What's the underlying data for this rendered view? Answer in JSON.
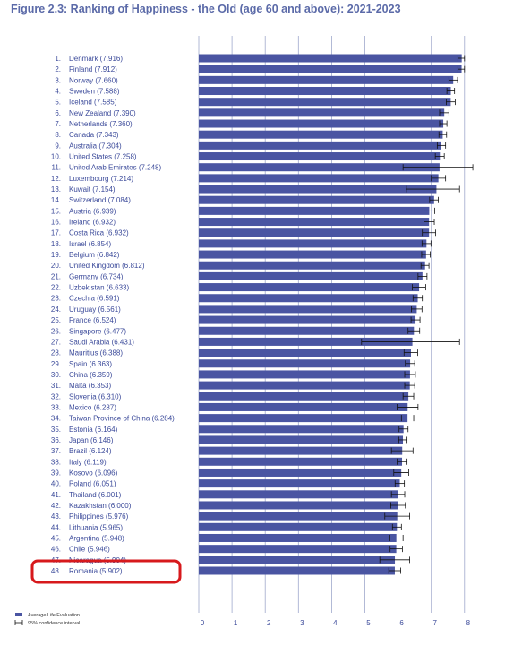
{
  "figure": {
    "title": "Figure 2.3: Ranking of Happiness - the Old (age 60 and above): 2021-2023"
  },
  "colors": {
    "bar": "#4a55a2",
    "title": "#5b6aa8",
    "label": "#3b4a9a",
    "grid": "#9fa8cc",
    "highlight": "#d7191c"
  },
  "highlight_rank": 48,
  "chart_data": {
    "type": "bar",
    "orientation": "horizontal",
    "title": "Figure 2.3: Ranking of Happiness - the Old (age 60 and above): 2021-2023",
    "xlim": [
      0,
      8
    ],
    "x_ticks": [
      "0",
      "1",
      "2",
      "3",
      "4",
      "5",
      "6",
      "7",
      "8"
    ],
    "grid": true,
    "legend_position": "bottom-left",
    "legend": [
      {
        "label": "Average Life Evaluation",
        "marker": "bar"
      },
      {
        "label": "95% confidence interval",
        "marker": "errorbar"
      }
    ],
    "rows": [
      {
        "rank": "1.",
        "label": "Denmark (7.916)",
        "value": 7.916,
        "ci": [
          7.8,
          8.0
        ]
      },
      {
        "rank": "2.",
        "label": "Finland (7.912)",
        "value": 7.912,
        "ci": [
          7.8,
          8.0
        ]
      },
      {
        "rank": "3.",
        "label": "Norway (7.660)",
        "value": 7.66,
        "ci": [
          7.53,
          7.79
        ]
      },
      {
        "rank": "4.",
        "label": "Sweden (7.588)",
        "value": 7.588,
        "ci": [
          7.47,
          7.7
        ]
      },
      {
        "rank": "5.",
        "label": "Iceland (7.585)",
        "value": 7.585,
        "ci": [
          7.45,
          7.72
        ]
      },
      {
        "rank": "6.",
        "label": "New Zealand (7.390)",
        "value": 7.39,
        "ci": [
          7.25,
          7.53
        ]
      },
      {
        "rank": "7.",
        "label": "Netherlands (7.360)",
        "value": 7.36,
        "ci": [
          7.25,
          7.47
        ]
      },
      {
        "rank": "8.",
        "label": "Canada (7.343)",
        "value": 7.343,
        "ci": [
          7.23,
          7.46
        ]
      },
      {
        "rank": "9.",
        "label": "Australia (7.304)",
        "value": 7.304,
        "ci": [
          7.18,
          7.43
        ]
      },
      {
        "rank": "10.",
        "label": "United States (7.258)",
        "value": 7.258,
        "ci": [
          7.12,
          7.39
        ]
      },
      {
        "rank": "11.",
        "label": "United Arab Emirates (7.248)",
        "value": 7.248,
        "ci": [
          6.15,
          8.25
        ]
      },
      {
        "rank": "12.",
        "label": "Luxembourg (7.214)",
        "value": 7.214,
        "ci": [
          7.0,
          7.43
        ]
      },
      {
        "rank": "13.",
        "label": "Kuwait (7.154)",
        "value": 7.154,
        "ci": [
          6.25,
          7.85
        ]
      },
      {
        "rank": "14.",
        "label": "Switzerland (7.084)",
        "value": 7.084,
        "ci": [
          6.95,
          7.21
        ]
      },
      {
        "rank": "15.",
        "label": "Austria (6.939)",
        "value": 6.939,
        "ci": [
          6.78,
          7.1
        ]
      },
      {
        "rank": "16.",
        "label": "Ireland (6.932)",
        "value": 6.932,
        "ci": [
          6.78,
          7.09
        ]
      },
      {
        "rank": "17.",
        "label": "Costa Rica (6.932)",
        "value": 6.932,
        "ci": [
          6.73,
          7.13
        ]
      },
      {
        "rank": "18.",
        "label": "Israel (6.854)",
        "value": 6.854,
        "ci": [
          6.72,
          6.99
        ]
      },
      {
        "rank": "19.",
        "label": "Belgium (6.842)",
        "value": 6.842,
        "ci": [
          6.71,
          6.97
        ]
      },
      {
        "rank": "20.",
        "label": "United Kingdom (6.812)",
        "value": 6.812,
        "ci": [
          6.69,
          6.93
        ]
      },
      {
        "rank": "21.",
        "label": "Germany (6.734)",
        "value": 6.734,
        "ci": [
          6.6,
          6.87
        ]
      },
      {
        "rank": "22.",
        "label": "Uzbekistan (6.633)",
        "value": 6.633,
        "ci": [
          6.43,
          6.83
        ]
      },
      {
        "rank": "23.",
        "label": "Czechia (6.591)",
        "value": 6.591,
        "ci": [
          6.45,
          6.73
        ]
      },
      {
        "rank": "24.",
        "label": "Uruguay (6.561)",
        "value": 6.561,
        "ci": [
          6.4,
          6.72
        ]
      },
      {
        "rank": "25.",
        "label": "France (6.524)",
        "value": 6.524,
        "ci": [
          6.39,
          6.66
        ]
      },
      {
        "rank": "26.",
        "label": "Singapore (6.477)",
        "value": 6.477,
        "ci": [
          6.3,
          6.65
        ]
      },
      {
        "rank": "27.",
        "label": "Saudi Arabia (6.431)",
        "value": 6.431,
        "ci": [
          4.9,
          7.85
        ]
      },
      {
        "rank": "28.",
        "label": "Mauritius (6.388)",
        "value": 6.388,
        "ci": [
          6.18,
          6.59
        ]
      },
      {
        "rank": "29.",
        "label": "Spain (6.363)",
        "value": 6.363,
        "ci": [
          6.22,
          6.5
        ]
      },
      {
        "rank": "30.",
        "label": "China (6.359)",
        "value": 6.359,
        "ci": [
          6.2,
          6.52
        ]
      },
      {
        "rank": "31.",
        "label": "Malta (6.353)",
        "value": 6.353,
        "ci": [
          6.2,
          6.5
        ]
      },
      {
        "rank": "32.",
        "label": "Slovenia (6.310)",
        "value": 6.31,
        "ci": [
          6.15,
          6.47
        ]
      },
      {
        "rank": "33.",
        "label": "Mexico (6.287)",
        "value": 6.287,
        "ci": [
          5.97,
          6.6
        ]
      },
      {
        "rank": "34.",
        "label": "Taiwan Province of China (6.284)",
        "value": 6.284,
        "ci": [
          6.1,
          6.47
        ]
      },
      {
        "rank": "35.",
        "label": "Estonia (6.164)",
        "value": 6.164,
        "ci": [
          6.03,
          6.3
        ]
      },
      {
        "rank": "36.",
        "label": "Japan (6.146)",
        "value": 6.146,
        "ci": [
          6.02,
          6.27
        ]
      },
      {
        "rank": "37.",
        "label": "Brazil (6.124)",
        "value": 6.124,
        "ci": [
          5.8,
          6.45
        ]
      },
      {
        "rank": "38.",
        "label": "Italy (6.119)",
        "value": 6.119,
        "ci": [
          5.97,
          6.27
        ]
      },
      {
        "rank": "39.",
        "label": "Kosovo (6.096)",
        "value": 6.096,
        "ci": [
          5.87,
          6.32
        ]
      },
      {
        "rank": "40.",
        "label": "Poland (6.051)",
        "value": 6.051,
        "ci": [
          5.91,
          6.19
        ]
      },
      {
        "rank": "41.",
        "label": "Thailand (6.001)",
        "value": 6.001,
        "ci": [
          5.8,
          6.2
        ]
      },
      {
        "rank": "42.",
        "label": "Kazakhstan (6.000)",
        "value": 6.0,
        "ci": [
          5.78,
          6.22
        ]
      },
      {
        "rank": "43.",
        "label": "Philippines (5.976)",
        "value": 5.976,
        "ci": [
          5.6,
          6.35
        ]
      },
      {
        "rank": "44.",
        "label": "Lithuania (5.965)",
        "value": 5.965,
        "ci": [
          5.83,
          6.1
        ]
      },
      {
        "rank": "45.",
        "label": "Argentina (5.948)",
        "value": 5.948,
        "ci": [
          5.75,
          6.15
        ]
      },
      {
        "rank": "46.",
        "label": "Chile (5.946)",
        "value": 5.946,
        "ci": [
          5.76,
          6.13
        ]
      },
      {
        "rank": "47.",
        "label": "Nicaragua (5.904)",
        "value": 5.904,
        "ci": [
          5.45,
          6.35
        ]
      },
      {
        "rank": "48.",
        "label": "Romania (5.902)",
        "value": 5.902,
        "ci": [
          5.72,
          6.08
        ]
      }
    ]
  }
}
